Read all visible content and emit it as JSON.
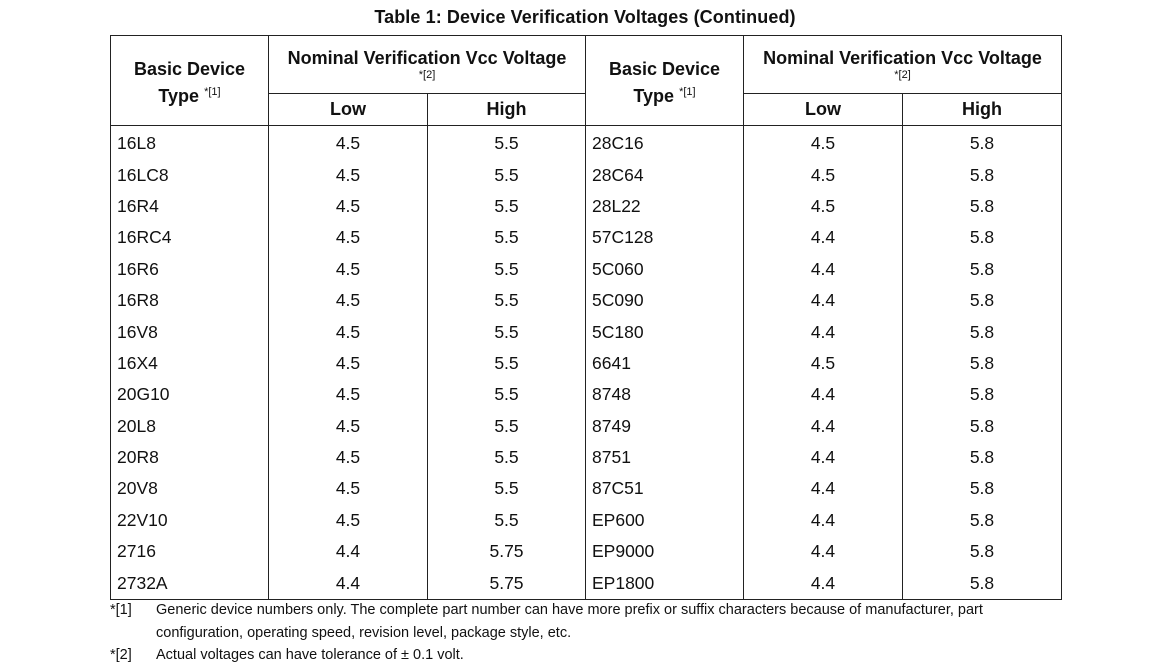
{
  "title": "Table 1:  Device Verification Voltages (Continued)",
  "header": {
    "device_type_line1": "Basic Device",
    "device_type_line2": "Type",
    "device_type_ref": "*[1]",
    "group_label": "Nominal Verification Vcc Voltage",
    "group_ref": "*[2]",
    "low": "Low",
    "high": "High"
  },
  "rows": [
    {
      "d1": "16L8",
      "l1": "4.5",
      "h1": "5.5",
      "d2": "28C16",
      "l2": "4.5",
      "h2": "5.8"
    },
    {
      "d1": "16LC8",
      "l1": "4.5",
      "h1": "5.5",
      "d2": "28C64",
      "l2": "4.5",
      "h2": "5.8"
    },
    {
      "d1": "16R4",
      "l1": "4.5",
      "h1": "5.5",
      "d2": "28L22",
      "l2": "4.5",
      "h2": "5.8"
    },
    {
      "d1": "16RC4",
      "l1": "4.5",
      "h1": "5.5",
      "d2": "57C128",
      "l2": "4.4",
      "h2": "5.8"
    },
    {
      "d1": "16R6",
      "l1": "4.5",
      "h1": "5.5",
      "d2": "5C060",
      "l2": "4.4",
      "h2": "5.8"
    },
    {
      "d1": "16R8",
      "l1": "4.5",
      "h1": "5.5",
      "d2": "5C090",
      "l2": "4.4",
      "h2": "5.8"
    },
    {
      "d1": "16V8",
      "l1": "4.5",
      "h1": "5.5",
      "d2": "5C180",
      "l2": "4.4",
      "h2": "5.8"
    },
    {
      "d1": "16X4",
      "l1": "4.5",
      "h1": "5.5",
      "d2": "6641",
      "l2": "4.5",
      "h2": "5.8"
    },
    {
      "d1": "20G10",
      "l1": "4.5",
      "h1": "5.5",
      "d2": "8748",
      "l2": "4.4",
      "h2": "5.8"
    },
    {
      "d1": "20L8",
      "l1": "4.5",
      "h1": "5.5",
      "d2": "8749",
      "l2": "4.4",
      "h2": "5.8"
    },
    {
      "d1": "20R8",
      "l1": "4.5",
      "h1": "5.5",
      "d2": "8751",
      "l2": "4.4",
      "h2": "5.8"
    },
    {
      "d1": "20V8",
      "l1": "4.5",
      "h1": "5.5",
      "d2": "87C51",
      "l2": "4.4",
      "h2": "5.8"
    },
    {
      "d1": "22V10",
      "l1": "4.5",
      "h1": "5.5",
      "d2": "EP600",
      "l2": "4.4",
      "h2": "5.8"
    },
    {
      "d1": "2716",
      "l1": "4.4",
      "h1": "5.75",
      "d2": "EP9000",
      "l2": "4.4",
      "h2": "5.8"
    },
    {
      "d1": "2732A",
      "l1": "4.4",
      "h1": "5.75",
      "d2": "EP1800",
      "l2": "4.4",
      "h2": "5.8"
    }
  ],
  "notes": [
    {
      "mark": "*[1]",
      "text": "Generic device numbers only. The complete part number can have more prefix or suffix characters because of manufacturer, part configuration, operating speed, revision level, package style, etc."
    },
    {
      "mark": "*[2]",
      "text": "Actual voltages can have tolerance of ± 0.1 volt."
    }
  ]
}
